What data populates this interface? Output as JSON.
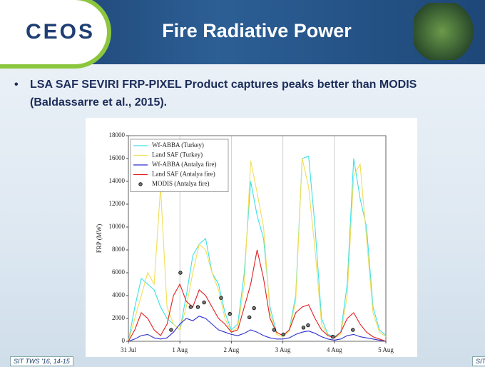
{
  "header": {
    "logo": "CEOS",
    "title": "Fire Radiative Power"
  },
  "bullet": "LSA SAF SEVIRI FRP-PIXEL Product captures peaks better than MODIS (Baldassarre et al., 2015).",
  "footer": {
    "left": "SIT TWS '16, 14-15",
    "right": "SIT"
  },
  "chart_data": {
    "type": "line",
    "y_label": "FRP (MW)",
    "xlim": [
      0,
      5
    ],
    "ylim": [
      0,
      18000
    ],
    "xticks": [
      {
        "value": 0,
        "label": "31 Jul"
      },
      {
        "value": 1,
        "label": "1 Aug"
      },
      {
        "value": 2,
        "label": "2 Aug"
      },
      {
        "value": 3,
        "label": "3 Aug"
      },
      {
        "value": 4,
        "label": "4 Aug"
      },
      {
        "value": 5,
        "label": "5 Aug"
      }
    ],
    "yticks": [
      0,
      2000,
      4000,
      6000,
      8000,
      10000,
      12000,
      14000,
      16000,
      18000
    ],
    "grid": "x",
    "legend": "upper left",
    "x": [
      0,
      0.125,
      0.25,
      0.375,
      0.5,
      0.625,
      0.75,
      0.875,
      1,
      1.125,
      1.25,
      1.375,
      1.5,
      1.625,
      1.75,
      1.875,
      2,
      2.125,
      2.25,
      2.375,
      2.5,
      2.625,
      2.75,
      2.875,
      3,
      3.125,
      3.25,
      3.375,
      3.5,
      3.625,
      3.75,
      3.875,
      4,
      4.125,
      4.25,
      4.375,
      4.5,
      4.625,
      4.75,
      4.875,
      5
    ],
    "series": [
      {
        "name": "Wf-ABBA (Turkey)",
        "color": "#3fe0e6",
        "values": [
          0,
          3000,
          5500,
          5000,
          4500,
          3000,
          2000,
          1500,
          1000,
          4000,
          7500,
          8500,
          9000,
          6000,
          5000,
          2500,
          1000,
          1500,
          6000,
          14000,
          11000,
          9000,
          3000,
          800,
          500,
          1000,
          4000,
          16000,
          16200,
          10000,
          2000,
          600,
          400,
          800,
          5000,
          16000,
          12500,
          10000,
          3000,
          1000,
          500
        ]
      },
      {
        "name": "Land SAF (Turkey)",
        "color": "#f3de55",
        "values": [
          0,
          2000,
          4000,
          6000,
          5000,
          13500,
          3000,
          1500,
          1000,
          3000,
          6000,
          8500,
          8000,
          6000,
          4500,
          2000,
          800,
          1200,
          5000,
          15800,
          13000,
          10000,
          2500,
          600,
          400,
          900,
          3500,
          16000,
          13500,
          8000,
          1500,
          500,
          300,
          600,
          4000,
          14500,
          15500,
          9000,
          2500,
          800,
          400
        ]
      },
      {
        "name": "Wf-ABBA (Antalya fire)",
        "color": "#2f2fd0",
        "values": [
          0,
          200,
          500,
          600,
          300,
          200,
          300,
          800,
          1500,
          2000,
          1800,
          2200,
          2000,
          1500,
          1000,
          800,
          600,
          500,
          700,
          1000,
          800,
          500,
          300,
          200,
          200,
          300,
          600,
          800,
          900,
          700,
          400,
          200,
          100,
          200,
          500,
          600,
          400,
          300,
          200,
          100,
          0
        ]
      },
      {
        "name": "Land SAF (Antalya fire)",
        "color": "#e02020",
        "values": [
          0,
          1000,
          2500,
          2000,
          1000,
          500,
          1500,
          4000,
          5000,
          3500,
          3000,
          4500,
          4000,
          3000,
          2000,
          1500,
          800,
          1000,
          3000,
          5000,
          8000,
          5500,
          2000,
          800,
          500,
          1000,
          2500,
          3000,
          3200,
          2000,
          1000,
          500,
          300,
          800,
          2000,
          2500,
          1500,
          800,
          400,
          200,
          0
        ]
      },
      {
        "name": "MODIS (Antalya fire)",
        "type": "scatter",
        "color": "#000000",
        "x": [
          0.83,
          1.01,
          1.21,
          1.35,
          1.47,
          1.8,
          1.97,
          2.35,
          2.44,
          2.83,
          3.01,
          3.4,
          3.49,
          3.97,
          4.36
        ],
        "values": [
          1000,
          6000,
          3000,
          3000,
          3400,
          3800,
          2400,
          2100,
          2900,
          1000,
          600,
          1200,
          1400,
          400,
          1000
        ]
      }
    ]
  }
}
